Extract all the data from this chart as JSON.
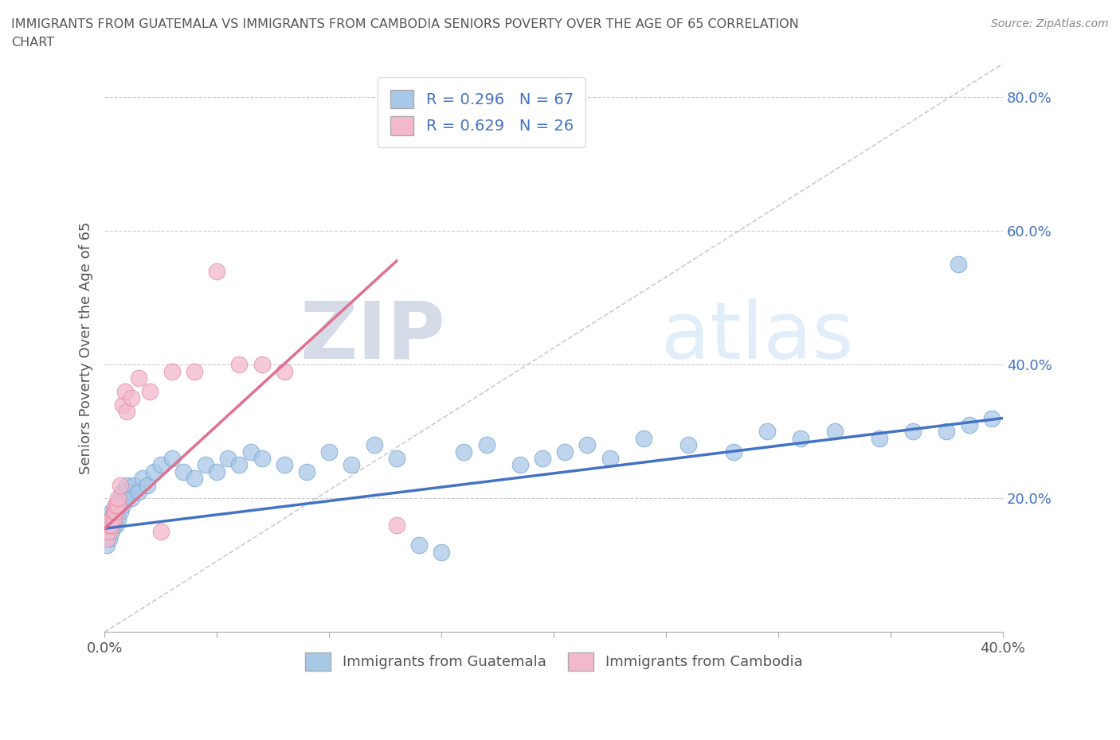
{
  "title_line1": "IMMIGRANTS FROM GUATEMALA VS IMMIGRANTS FROM CAMBODIA SENIORS POVERTY OVER THE AGE OF 65 CORRELATION",
  "title_line2": "CHART",
  "source": "Source: ZipAtlas.com",
  "ylabel": "Seniors Poverty Over the Age of 65",
  "xlim": [
    0.0,
    0.4
  ],
  "ylim": [
    0.0,
    0.85
  ],
  "x_ticks": [
    0.0,
    0.05,
    0.1,
    0.15,
    0.2,
    0.25,
    0.3,
    0.35,
    0.4
  ],
  "y_ticks": [
    0.0,
    0.2,
    0.4,
    0.6,
    0.8
  ],
  "y_tick_labels": [
    "",
    "20.0%",
    "40.0%",
    "60.0%",
    "80.0%"
  ],
  "guatemala_color": "#a8c8e8",
  "cambodia_color": "#f4b8cc",
  "guatemala_line_color": "#4472c4",
  "cambodia_line_color": "#e07090",
  "diagonal_color": "#cccccc",
  "R_guatemala": 0.296,
  "N_guatemala": 67,
  "R_cambodia": 0.629,
  "N_cambodia": 26,
  "watermark_zip": "ZIP",
  "watermark_atlas": "atlas",
  "guatemala_x": [
    0.001,
    0.001,
    0.002,
    0.002,
    0.002,
    0.003,
    0.003,
    0.003,
    0.004,
    0.004,
    0.004,
    0.005,
    0.005,
    0.005,
    0.006,
    0.006,
    0.007,
    0.007,
    0.008,
    0.008,
    0.009,
    0.01,
    0.01,
    0.011,
    0.012,
    0.013,
    0.015,
    0.017,
    0.019,
    0.022,
    0.025,
    0.03,
    0.035,
    0.04,
    0.045,
    0.05,
    0.055,
    0.06,
    0.065,
    0.07,
    0.08,
    0.09,
    0.1,
    0.11,
    0.12,
    0.13,
    0.14,
    0.15,
    0.16,
    0.17,
    0.185,
    0.195,
    0.205,
    0.215,
    0.225,
    0.24,
    0.26,
    0.28,
    0.295,
    0.31,
    0.325,
    0.345,
    0.36,
    0.375,
    0.385,
    0.395,
    0.38
  ],
  "guatemala_y": [
    0.13,
    0.15,
    0.14,
    0.16,
    0.17,
    0.15,
    0.17,
    0.18,
    0.16,
    0.17,
    0.18,
    0.16,
    0.18,
    0.19,
    0.17,
    0.19,
    0.18,
    0.2,
    0.19,
    0.21,
    0.2,
    0.21,
    0.22,
    0.21,
    0.2,
    0.22,
    0.21,
    0.23,
    0.22,
    0.24,
    0.25,
    0.26,
    0.24,
    0.23,
    0.25,
    0.24,
    0.26,
    0.25,
    0.27,
    0.26,
    0.25,
    0.24,
    0.27,
    0.25,
    0.28,
    0.26,
    0.13,
    0.12,
    0.27,
    0.28,
    0.25,
    0.26,
    0.27,
    0.28,
    0.26,
    0.29,
    0.28,
    0.27,
    0.3,
    0.29,
    0.3,
    0.29,
    0.3,
    0.3,
    0.31,
    0.32,
    0.55
  ],
  "cambodia_x": [
    0.001,
    0.002,
    0.002,
    0.003,
    0.003,
    0.004,
    0.004,
    0.005,
    0.005,
    0.006,
    0.006,
    0.007,
    0.008,
    0.009,
    0.01,
    0.012,
    0.015,
    0.02,
    0.025,
    0.03,
    0.04,
    0.05,
    0.06,
    0.07,
    0.08,
    0.13
  ],
  "cambodia_y": [
    0.14,
    0.15,
    0.16,
    0.16,
    0.17,
    0.17,
    0.18,
    0.18,
    0.19,
    0.19,
    0.2,
    0.22,
    0.34,
    0.36,
    0.33,
    0.35,
    0.38,
    0.36,
    0.15,
    0.39,
    0.39,
    0.54,
    0.4,
    0.4,
    0.39,
    0.16
  ],
  "guat_line_x0": 0.0,
  "guat_line_y0": 0.155,
  "guat_line_x1": 0.4,
  "guat_line_y1": 0.32,
  "camb_line_x0": 0.0,
  "camb_line_y0": 0.155,
  "camb_line_x1": 0.13,
  "camb_line_y1": 0.555
}
